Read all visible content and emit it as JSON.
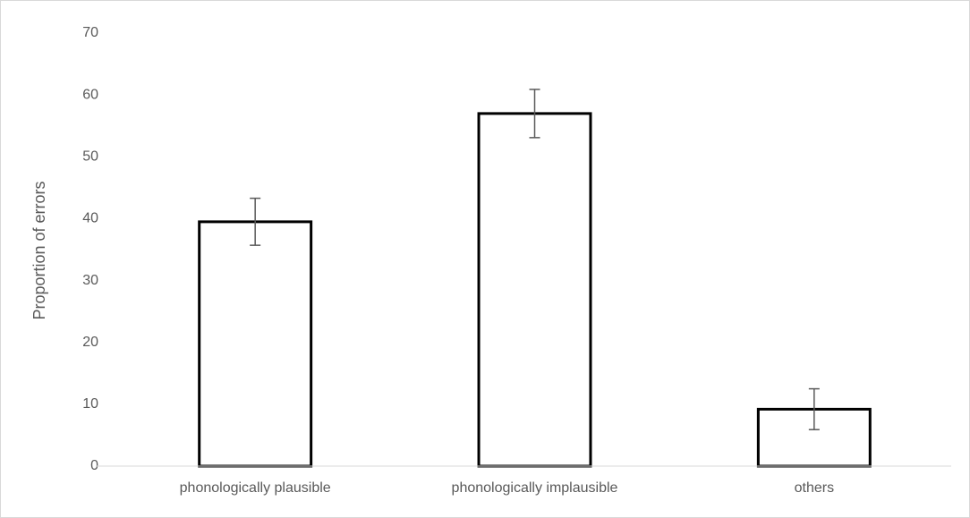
{
  "chart_data": {
    "type": "bar",
    "y_label": "Proportion of errors",
    "categories": [
      "phonologically plausible",
      "phonologically implausible",
      "others"
    ],
    "values": [
      39.5,
      57,
      9.2
    ],
    "errors": [
      3.8,
      3.9,
      3.3
    ],
    "color": "#ffffff",
    "edge_color": "#000000",
    "error_color": "#595959",
    "ylim": [
      0,
      70
    ],
    "yticks": [
      0,
      10,
      20,
      30,
      40,
      50,
      60,
      70
    ],
    "grid": false
  }
}
